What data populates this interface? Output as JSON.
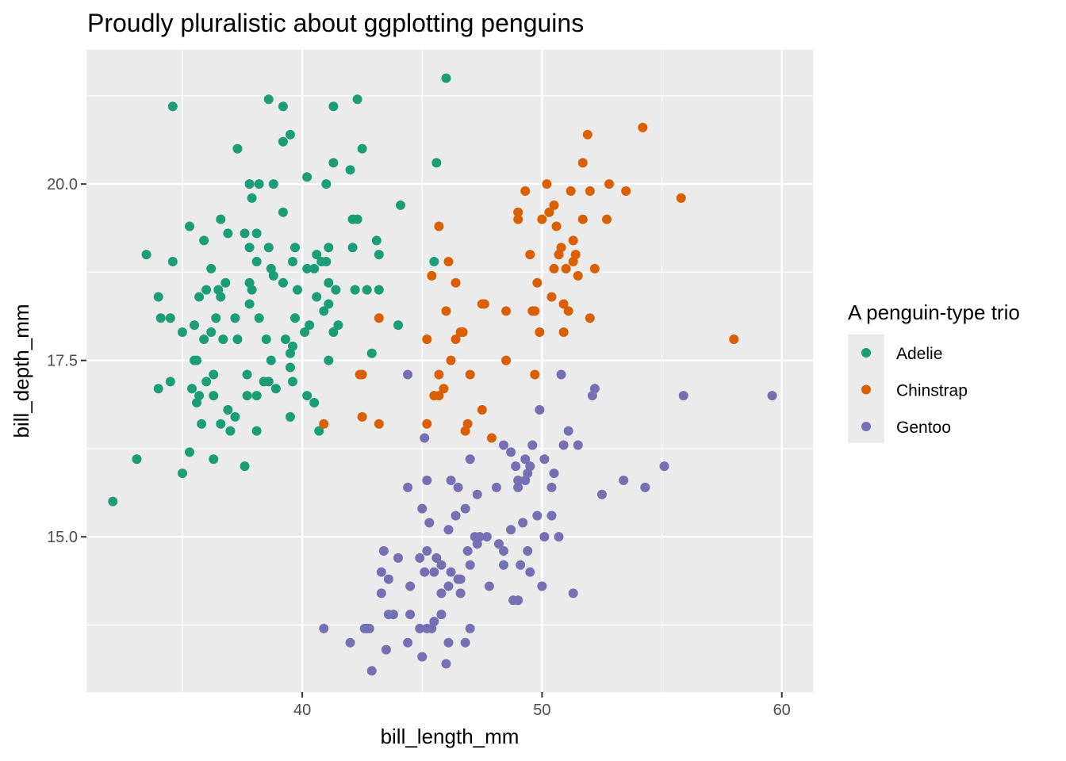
{
  "chart_data": {
    "type": "scatter",
    "title": "Proudly pluralistic about ggplotting penguins",
    "xlabel": "bill_length_mm",
    "ylabel": "bill_depth_mm",
    "xlim": [
      31,
      61.3
    ],
    "ylim": [
      12.8,
      21.9
    ],
    "x_ticks": [
      40,
      50,
      60
    ],
    "x_tick_labels": [
      "40",
      "50",
      "60"
    ],
    "y_ticks": [
      15.0,
      17.5,
      20.0
    ],
    "y_tick_labels": [
      "15.0",
      "17.5",
      "20.0"
    ],
    "grid": true,
    "panel_background": "#ebebeb",
    "legend": {
      "title": "A penguin-type trio",
      "position": "right"
    },
    "series": [
      {
        "name": "Adelie",
        "color": "#1b9e77",
        "points": [
          [
            46.0,
            21.5
          ],
          [
            34.6,
            21.1
          ],
          [
            38.6,
            21.2
          ],
          [
            42.3,
            21.2
          ],
          [
            39.2,
            21.1
          ],
          [
            41.3,
            21.1
          ],
          [
            39.5,
            20.7
          ],
          [
            42.5,
            20.5
          ],
          [
            39.2,
            20.6
          ],
          [
            37.3,
            20.5
          ],
          [
            41.3,
            20.3
          ],
          [
            45.6,
            20.3
          ],
          [
            42.0,
            20.2
          ],
          [
            40.2,
            20.1
          ],
          [
            41.0,
            20.0
          ],
          [
            37.8,
            20.0
          ],
          [
            38.2,
            20.0
          ],
          [
            38.8,
            20.0
          ],
          [
            39.2,
            19.6
          ],
          [
            37.9,
            19.8
          ],
          [
            44.1,
            19.7
          ],
          [
            36.6,
            19.5
          ],
          [
            42.1,
            19.5
          ],
          [
            42.3,
            19.5
          ],
          [
            35.3,
            19.4
          ],
          [
            37.6,
            19.3
          ],
          [
            36.9,
            19.3
          ],
          [
            38.1,
            19.3
          ],
          [
            35.9,
            19.2
          ],
          [
            43.1,
            19.2
          ],
          [
            38.6,
            19.1
          ],
          [
            39.7,
            19.1
          ],
          [
            41.1,
            19.1
          ],
          [
            37.8,
            19.1
          ],
          [
            42.1,
            19.1
          ],
          [
            33.5,
            19.0
          ],
          [
            43.2,
            19.0
          ],
          [
            39.6,
            18.9
          ],
          [
            40.6,
            19.0
          ],
          [
            41.0,
            18.9
          ],
          [
            38.1,
            18.9
          ],
          [
            34.6,
            18.9
          ],
          [
            38.7,
            18.8
          ],
          [
            36.2,
            18.8
          ],
          [
            38.8,
            18.7
          ],
          [
            40.2,
            18.8
          ],
          [
            40.5,
            18.8
          ],
          [
            40.8,
            18.9
          ],
          [
            37.8,
            18.6
          ],
          [
            36.8,
            18.6
          ],
          [
            36.5,
            18.5
          ],
          [
            39.2,
            18.6
          ],
          [
            41.1,
            18.6
          ],
          [
            36.0,
            18.5
          ],
          [
            37.9,
            18.5
          ],
          [
            39.8,
            18.5
          ],
          [
            42.2,
            18.5
          ],
          [
            42.7,
            18.5
          ],
          [
            43.2,
            18.5
          ],
          [
            35.7,
            18.4
          ],
          [
            40.6,
            18.4
          ],
          [
            41.4,
            18.5
          ],
          [
            36.6,
            18.4
          ],
          [
            34.0,
            18.4
          ],
          [
            37.8,
            18.3
          ],
          [
            41.1,
            18.3
          ],
          [
            36.4,
            18.1
          ],
          [
            40.9,
            18.2
          ],
          [
            38.2,
            18.1
          ],
          [
            37.2,
            18.1
          ],
          [
            34.1,
            18.1
          ],
          [
            34.5,
            18.1
          ],
          [
            39.7,
            18.1
          ],
          [
            41.5,
            18.0
          ],
          [
            35.5,
            18.0
          ],
          [
            40.3,
            18.0
          ],
          [
            44.0,
            18.0
          ],
          [
            36.2,
            17.9
          ],
          [
            40.1,
            17.9
          ],
          [
            41.3,
            17.9
          ],
          [
            37.3,
            17.8
          ],
          [
            38.5,
            17.8
          ],
          [
            36.7,
            17.8
          ],
          [
            35.0,
            17.9
          ],
          [
            35.9,
            17.8
          ],
          [
            39.6,
            17.7
          ],
          [
            39.3,
            17.8
          ],
          [
            39.5,
            17.6
          ],
          [
            42.9,
            17.6
          ],
          [
            38.7,
            17.5
          ],
          [
            35.5,
            17.5
          ],
          [
            35.6,
            17.5
          ],
          [
            41.1,
            17.5
          ],
          [
            39.5,
            17.4
          ],
          [
            36.3,
            17.3
          ],
          [
            37.7,
            17.3
          ],
          [
            36.0,
            17.2
          ],
          [
            34.5,
            17.2
          ],
          [
            38.4,
            17.2
          ],
          [
            38.6,
            17.2
          ],
          [
            39.6,
            17.2
          ],
          [
            38.9,
            17.1
          ],
          [
            34.0,
            17.1
          ],
          [
            36.3,
            17.0
          ],
          [
            40.2,
            17.0
          ],
          [
            35.6,
            16.9
          ],
          [
            37.7,
            17.0
          ],
          [
            38.1,
            17.0
          ],
          [
            35.4,
            17.1
          ],
          [
            40.5,
            16.9
          ],
          [
            36.9,
            16.8
          ],
          [
            35.7,
            17.0
          ],
          [
            37.2,
            16.7
          ],
          [
            39.5,
            16.7
          ],
          [
            40.7,
            16.5
          ],
          [
            35.8,
            16.6
          ],
          [
            36.6,
            16.6
          ],
          [
            37.0,
            16.5
          ],
          [
            38.1,
            16.5
          ],
          [
            35.3,
            16.2
          ],
          [
            36.3,
            16.1
          ],
          [
            33.1,
            16.1
          ],
          [
            37.6,
            16.0
          ],
          [
            35.0,
            15.9
          ],
          [
            32.1,
            15.5
          ],
          [
            45.5,
            18.9
          ]
        ]
      },
      {
        "name": "Chinstrap",
        "color": "#d95f02",
        "points": [
          [
            54.2,
            20.8
          ],
          [
            51.9,
            20.7
          ],
          [
            51.7,
            20.3
          ],
          [
            52.8,
            20.0
          ],
          [
            52.0,
            19.9
          ],
          [
            50.2,
            20.0
          ],
          [
            49.3,
            19.9
          ],
          [
            51.2,
            19.9
          ],
          [
            53.5,
            19.9
          ],
          [
            55.8,
            19.8
          ],
          [
            50.5,
            19.7
          ],
          [
            50.3,
            19.6
          ],
          [
            49.0,
            19.6
          ],
          [
            49.0,
            19.5
          ],
          [
            52.7,
            19.5
          ],
          [
            51.7,
            19.5
          ],
          [
            50.0,
            19.5
          ],
          [
            45.7,
            19.4
          ],
          [
            50.6,
            19.4
          ],
          [
            51.3,
            19.2
          ],
          [
            50.8,
            19.1
          ],
          [
            51.3,
            18.9
          ],
          [
            50.7,
            19.0
          ],
          [
            51.4,
            19.0
          ],
          [
            49.5,
            19.0
          ],
          [
            52.2,
            18.8
          ],
          [
            50.5,
            18.8
          ],
          [
            51.0,
            18.8
          ],
          [
            46.1,
            18.9
          ],
          [
            51.5,
            18.7
          ],
          [
            45.4,
            18.7
          ],
          [
            49.8,
            18.6
          ],
          [
            46.4,
            18.6
          ],
          [
            49.6,
            18.2
          ],
          [
            50.9,
            18.3
          ],
          [
            50.4,
            18.4
          ],
          [
            47.5,
            18.3
          ],
          [
            48.5,
            18.2
          ],
          [
            49.7,
            18.2
          ],
          [
            51.1,
            18.2
          ],
          [
            46.0,
            18.2
          ],
          [
            52.0,
            18.1
          ],
          [
            43.2,
            18.1
          ],
          [
            47.6,
            18.3
          ],
          [
            50.9,
            17.9
          ],
          [
            49.9,
            17.9
          ],
          [
            46.6,
            17.9
          ],
          [
            46.7,
            17.9
          ],
          [
            46.4,
            17.8
          ],
          [
            45.2,
            17.8
          ],
          [
            58.0,
            17.8
          ],
          [
            46.2,
            17.5
          ],
          [
            48.5,
            17.5
          ],
          [
            42.4,
            17.3
          ],
          [
            42.5,
            17.3
          ],
          [
            45.7,
            17.3
          ],
          [
            47.0,
            17.3
          ],
          [
            49.7,
            17.3
          ],
          [
            46.9,
            16.6
          ],
          [
            45.5,
            17.0
          ],
          [
            45.9,
            17.1
          ],
          [
            45.7,
            17.0
          ],
          [
            47.5,
            16.8
          ],
          [
            42.5,
            16.7
          ],
          [
            40.9,
            16.6
          ],
          [
            43.2,
            16.6
          ],
          [
            45.2,
            16.6
          ],
          [
            46.8,
            16.5
          ],
          [
            47.9,
            16.4
          ]
        ]
      },
      {
        "name": "Gentoo",
        "color": "#7570b3",
        "points": [
          [
            55.9,
            17.0
          ],
          [
            59.6,
            17.0
          ],
          [
            52.1,
            17.0
          ],
          [
            52.2,
            17.1
          ],
          [
            44.4,
            17.3
          ],
          [
            50.8,
            17.3
          ],
          [
            49.9,
            16.8
          ],
          [
            51.1,
            16.5
          ],
          [
            45.1,
            16.4
          ],
          [
            49.6,
            16.3
          ],
          [
            50.9,
            16.3
          ],
          [
            51.5,
            16.3
          ],
          [
            48.4,
            16.3
          ],
          [
            48.7,
            16.2
          ],
          [
            50.1,
            16.1
          ],
          [
            49.3,
            16.1
          ],
          [
            48.9,
            16.0
          ],
          [
            49.5,
            16.0
          ],
          [
            55.1,
            16.0
          ],
          [
            47.0,
            16.1
          ],
          [
            49.4,
            15.9
          ],
          [
            49.0,
            15.8
          ],
          [
            50.5,
            15.9
          ],
          [
            53.4,
            15.8
          ],
          [
            45.2,
            15.8
          ],
          [
            46.2,
            15.8
          ],
          [
            49.3,
            15.8
          ],
          [
            44.4,
            15.7
          ],
          [
            46.5,
            15.7
          ],
          [
            48.1,
            15.7
          ],
          [
            49.0,
            15.7
          ],
          [
            50.4,
            15.7
          ],
          [
            54.3,
            15.7
          ],
          [
            52.5,
            15.6
          ],
          [
            47.3,
            15.6
          ],
          [
            46.8,
            15.4
          ],
          [
            45.0,
            15.4
          ],
          [
            46.4,
            15.3
          ],
          [
            49.8,
            15.3
          ],
          [
            50.4,
            15.3
          ],
          [
            46.1,
            15.1
          ],
          [
            45.3,
            15.2
          ],
          [
            43.4,
            14.8
          ],
          [
            47.4,
            15.0
          ],
          [
            47.7,
            15.0
          ],
          [
            48.7,
            15.1
          ],
          [
            50.1,
            15.0
          ],
          [
            50.7,
            15.0
          ],
          [
            49.2,
            15.2
          ],
          [
            45.8,
            14.6
          ],
          [
            47.2,
            15.0
          ],
          [
            48.2,
            14.9
          ],
          [
            44.5,
            14.3
          ],
          [
            46.5,
            14.4
          ],
          [
            45.5,
            14.5
          ],
          [
            46.2,
            14.5
          ],
          [
            47.0,
            14.6
          ],
          [
            48.4,
            14.6
          ],
          [
            49.1,
            14.6
          ],
          [
            44.0,
            14.7
          ],
          [
            45.2,
            14.8
          ],
          [
            46.9,
            14.8
          ],
          [
            47.3,
            14.9
          ],
          [
            48.4,
            14.8
          ],
          [
            49.4,
            14.8
          ],
          [
            45.6,
            14.7
          ],
          [
            43.3,
            14.5
          ],
          [
            43.6,
            14.4
          ],
          [
            44.9,
            14.7
          ],
          [
            45.1,
            14.5
          ],
          [
            46.6,
            14.4
          ],
          [
            46.1,
            14.3
          ],
          [
            47.8,
            14.3
          ],
          [
            49.5,
            14.5
          ],
          [
            45.8,
            14.2
          ],
          [
            48.8,
            14.1
          ],
          [
            50.0,
            14.3
          ],
          [
            51.3,
            14.2
          ],
          [
            46.6,
            14.2
          ],
          [
            49.0,
            14.1
          ],
          [
            43.3,
            14.2
          ],
          [
            44.5,
            13.9
          ],
          [
            45.8,
            13.9
          ],
          [
            43.8,
            13.9
          ],
          [
            43.6,
            13.9
          ],
          [
            45.2,
            13.7
          ],
          [
            44.9,
            13.7
          ],
          [
            45.4,
            13.7
          ],
          [
            47.0,
            13.7
          ],
          [
            45.5,
            13.8
          ],
          [
            40.9,
            13.7
          ],
          [
            42.6,
            13.7
          ],
          [
            42.8,
            13.7
          ],
          [
            46.1,
            13.5
          ],
          [
            44.4,
            13.5
          ],
          [
            42.0,
            13.5
          ],
          [
            43.5,
            13.4
          ],
          [
            45.0,
            13.3
          ],
          [
            46.0,
            13.2
          ],
          [
            42.9,
            13.1
          ],
          [
            46.8,
            13.5
          ],
          [
            42.7,
            13.7
          ]
        ]
      }
    ]
  }
}
